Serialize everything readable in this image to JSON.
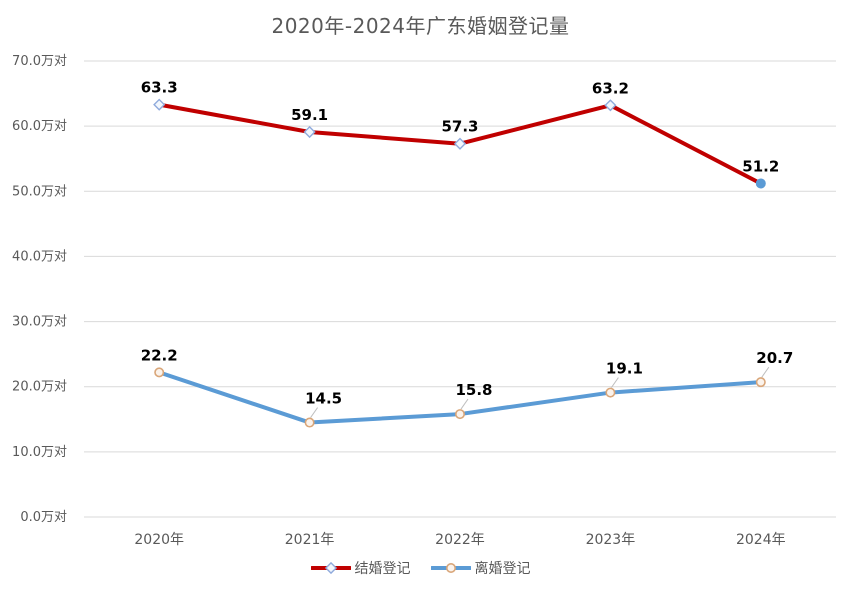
{
  "title": "2020年-2024年广东婚姻登记量",
  "chart_data": {
    "type": "line",
    "title": "2020年-2024年广东婚姻登记量",
    "categories": [
      "2020年",
      "2021年",
      "2022年",
      "2023年",
      "2024年"
    ],
    "series": [
      {
        "name": "结婚登记",
        "values": [
          63.3,
          59.1,
          57.3,
          63.2,
          51.2
        ],
        "color": "#C00000",
        "marker": "diamond",
        "marker_stroke": "#8FAADC",
        "marker_fill": "#F2F7FD",
        "last_marker": {
          "shape": "solid-circle",
          "fill": "#5B9BD5"
        },
        "label_offset": "above"
      },
      {
        "name": "离婚登记",
        "values": [
          22.2,
          14.5,
          15.8,
          19.1,
          20.7
        ],
        "color": "#5B9BD5",
        "marker": "circle",
        "marker_stroke": "#D9A679",
        "marker_fill": "#FBF3EC",
        "last_marker": null,
        "label_offset": "up-right-with-leader"
      }
    ],
    "y_ticks": [
      "70.0万对",
      "60.0万对",
      "50.0万对",
      "40.0万对",
      "30.0万对",
      "20.0万对",
      "10.0万对",
      "0.0万对"
    ],
    "ylim": [
      0,
      70
    ],
    "y_step": 10,
    "unit": "万对",
    "grid": true,
    "legend_position": "bottom",
    "colors": {
      "background": "#FFFFFF",
      "grid": "#D9D9D9",
      "axis_text": "#595959",
      "title_text": "#595959",
      "data_label": "#000000",
      "leader_line": "#BFBFBF"
    }
  }
}
